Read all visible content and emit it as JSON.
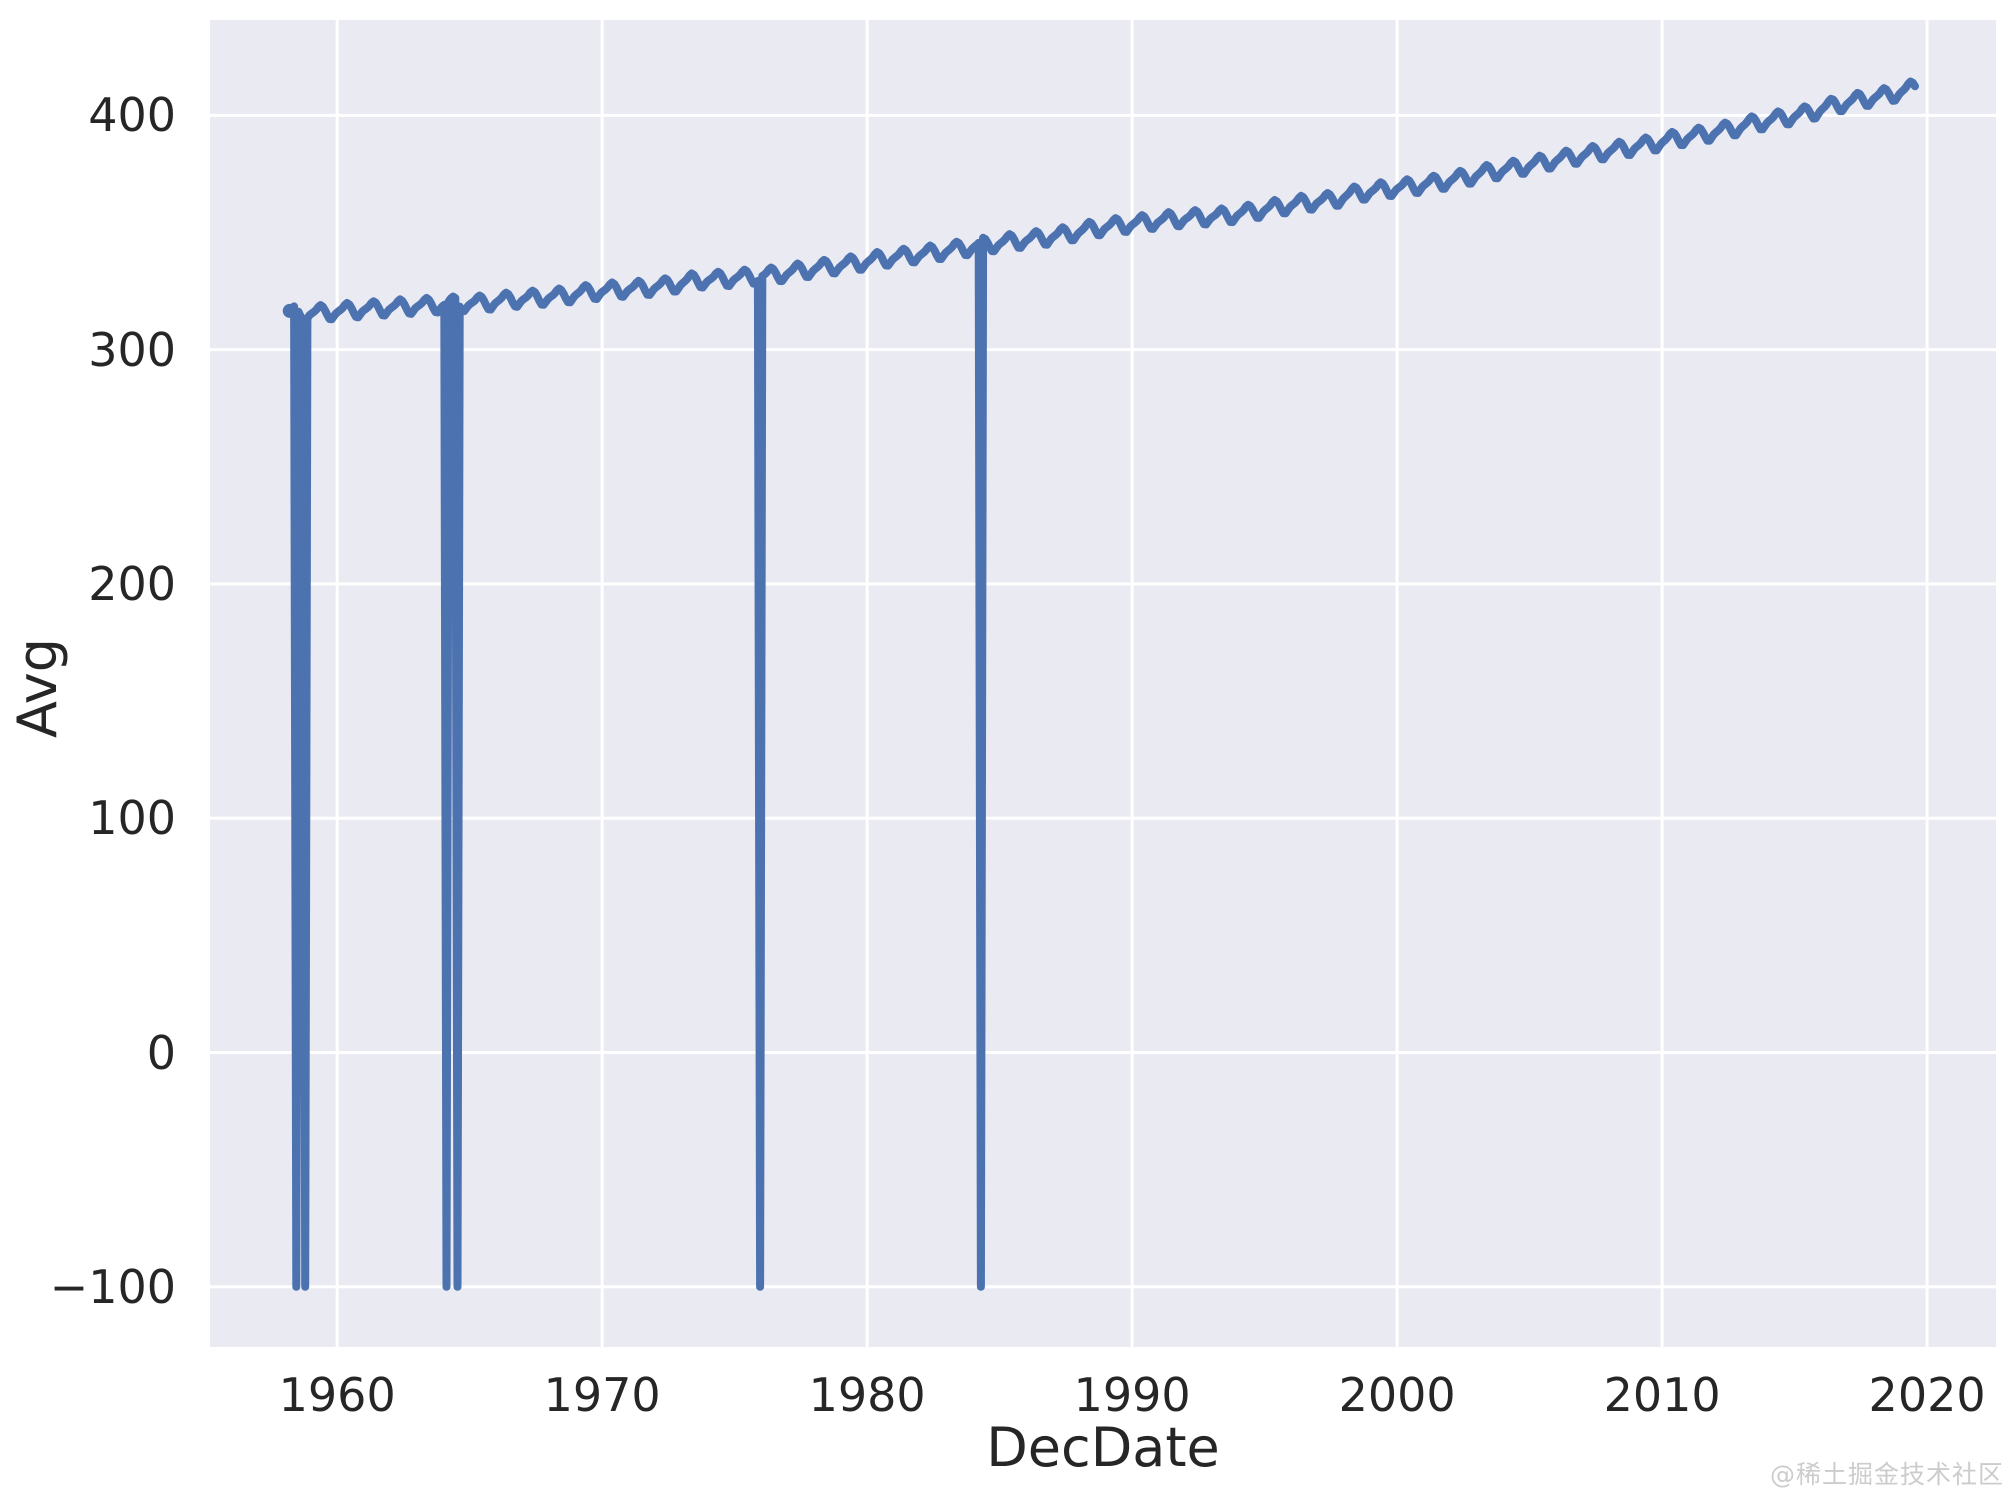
{
  "watermark": "@稀土掘金技术社区",
  "colors": {
    "line": "#4c72b0",
    "plot_background": "#eaeaf2",
    "grid": "#ffffff",
    "text": "#262626",
    "figure_background": "#ffffff",
    "watermark_text": "#cccccc"
  },
  "chart_data": {
    "type": "line",
    "title": "",
    "xlabel": "DecDate",
    "ylabel": "Avg",
    "legend": false,
    "grid": true,
    "xlim": [
      1955.2,
      2022.6
    ],
    "ylim": [
      -125.7,
      440.7
    ],
    "x_ticks": [
      1960,
      1970,
      1980,
      1990,
      2000,
      2010,
      2020
    ],
    "x_tick_labels": [
      "1960",
      "1970",
      "1980",
      "1990",
      "2000",
      "2010",
      "2020"
    ],
    "y_ticks": [
      -100,
      0,
      100,
      200,
      300,
      400
    ],
    "y_tick_labels": [
      "−100",
      "0",
      "100",
      "200",
      "300",
      "400"
    ],
    "series_name": "Avg",
    "x_start": 1958.2083,
    "x_end": 2019.5417,
    "sampling": "monthly",
    "missing_value_code": -99.99,
    "missing_dates_decimal": [
      1958.46,
      1958.79,
      1964.12,
      1964.54,
      1975.96,
      1984.29
    ],
    "annual_means": {
      "start_year": 1958,
      "values": [
        315.34,
        315.97,
        316.91,
        317.64,
        318.45,
        318.99,
        319.62,
        320.04,
        321.37,
        322.18,
        323.05,
        324.62,
        325.68,
        326.32,
        327.46,
        329.68,
        330.19,
        331.12,
        332.03,
        333.84,
        335.41,
        336.84,
        338.76,
        340.12,
        341.48,
        343.15,
        344.87,
        346.35,
        347.61,
        349.31,
        351.69,
        353.2,
        354.45,
        355.7,
        356.54,
        357.21,
        358.96,
        360.97,
        362.74,
        363.88,
        366.84,
        368.54,
        369.71,
        371.32,
        373.45,
        375.98,
        377.7,
        379.98,
        382.09,
        384.02,
        385.83,
        387.64,
        390.1,
        391.85,
        394.06,
        396.74,
        398.81,
        401.01,
        404.41,
        406.76,
        408.72,
        411.66
      ]
    },
    "seasonal_offsets_by_month": [
      -0.2,
      0.4,
      1.2,
      2.4,
      3.1,
      2.4,
      0.8,
      -1.3,
      -3.1,
      -3.3,
      -2.1,
      -0.9
    ]
  }
}
